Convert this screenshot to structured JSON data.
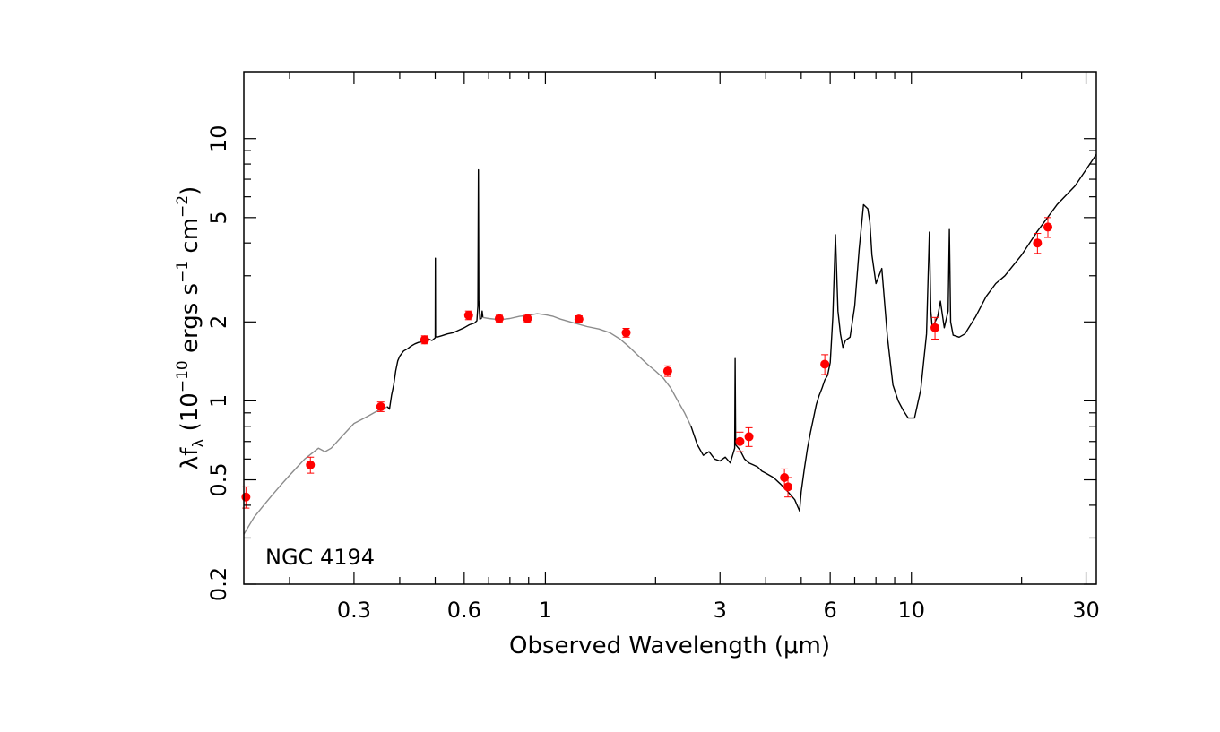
{
  "chart_data": {
    "type": "scatter",
    "title": "",
    "annotation": "NGC 4194",
    "xlabel": "Observed Wavelength (μm)",
    "ylabel": {
      "lead": "λf",
      "sub": "λ",
      "open": " (10",
      "exp1": "−10",
      "mid": " ergs s",
      "exp2": "−1",
      "mid2": " cm",
      "exp3": "−2",
      "close": ")"
    },
    "x_scale": "log",
    "y_scale": "log",
    "xlim": [
      0.15,
      32
    ],
    "ylim": [
      0.2,
      18
    ],
    "x_ticks": [
      {
        "value": 0.3,
        "label": "0.3"
      },
      {
        "value": 0.6,
        "label": "0.6"
      },
      {
        "value": 1,
        "label": "1"
      },
      {
        "value": 3,
        "label": "3"
      },
      {
        "value": 6,
        "label": "6"
      },
      {
        "value": 10,
        "label": "10"
      },
      {
        "value": 30,
        "label": "30"
      }
    ],
    "y_ticks": [
      {
        "value": 0.2,
        "label": "0.2"
      },
      {
        "value": 0.5,
        "label": "0.5"
      },
      {
        "value": 1,
        "label": "1"
      },
      {
        "value": 2,
        "label": "2"
      },
      {
        "value": 5,
        "label": "5"
      },
      {
        "value": 10,
        "label": "10"
      }
    ],
    "series": [
      {
        "kind": "line",
        "color": "#8c8c8c",
        "x": [
          0.15,
          0.16,
          0.17,
          0.18,
          0.19,
          0.2,
          0.21,
          0.22,
          0.23,
          0.24,
          0.25,
          0.26,
          0.27,
          0.28,
          0.29,
          0.3,
          0.31,
          0.32,
          0.33,
          0.34,
          0.35,
          0.36,
          0.37
        ],
        "y": [
          0.31,
          0.36,
          0.4,
          0.44,
          0.48,
          0.52,
          0.56,
          0.6,
          0.63,
          0.66,
          0.64,
          0.66,
          0.7,
          0.74,
          0.78,
          0.82,
          0.84,
          0.86,
          0.88,
          0.9,
          0.92,
          0.93,
          0.95
        ]
      },
      {
        "kind": "line",
        "color": "#000000",
        "x": [
          0.37,
          0.375,
          0.38,
          0.385,
          0.39,
          0.395,
          0.4,
          0.41,
          0.42,
          0.43,
          0.44,
          0.45,
          0.46,
          0.47,
          0.48,
          0.49,
          0.5,
          0.5007,
          0.501,
          0.505,
          0.52,
          0.54,
          0.56,
          0.58,
          0.6,
          0.62,
          0.64,
          0.65,
          0.654,
          0.656,
          0.658,
          0.662,
          0.668,
          0.672,
          0.675
        ],
        "y": [
          0.95,
          0.93,
          1.05,
          1.15,
          1.3,
          1.42,
          1.48,
          1.55,
          1.58,
          1.62,
          1.65,
          1.67,
          1.68,
          1.7,
          1.72,
          1.7,
          1.74,
          3.5,
          1.76,
          1.75,
          1.77,
          1.8,
          1.82,
          1.86,
          1.9,
          1.95,
          1.98,
          2.02,
          2.3,
          7.6,
          2.4,
          2.05,
          2.06,
          2.2,
          2.08
        ]
      },
      {
        "kind": "line",
        "color": "#8c8c8c",
        "x": [
          0.675,
          0.7,
          0.75,
          0.8,
          0.85,
          0.9,
          0.95,
          1.0,
          1.05,
          1.1,
          1.2,
          1.3,
          1.4,
          1.5,
          1.6,
          1.7,
          1.8,
          1.9,
          2.0,
          2.1,
          2.2,
          2.3,
          2.4,
          2.5
        ],
        "y": [
          2.08,
          2.06,
          2.04,
          2.06,
          2.1,
          2.12,
          2.15,
          2.13,
          2.1,
          2.05,
          1.98,
          1.92,
          1.88,
          1.82,
          1.72,
          1.6,
          1.48,
          1.38,
          1.3,
          1.22,
          1.12,
          1.0,
          0.9,
          0.8
        ]
      },
      {
        "kind": "line",
        "color": "#000000",
        "x": [
          2.5,
          2.6,
          2.7,
          2.8,
          2.9,
          3.0,
          3.1,
          3.2,
          3.29,
          3.3,
          3.31,
          3.4,
          3.5,
          3.6,
          3.7,
          3.8,
          3.9,
          4.0,
          4.2,
          4.4,
          4.6,
          4.8,
          4.95,
          5.0,
          5.1,
          5.2,
          5.3,
          5.4,
          5.5,
          5.6,
          5.7,
          5.8,
          5.9,
          6.0,
          6.1,
          6.2,
          6.3,
          6.4,
          6.5,
          6.6,
          6.8,
          7.0,
          7.2,
          7.4,
          7.6,
          7.7,
          7.8,
          8.0,
          8.3,
          8.6,
          8.9,
          9.2,
          9.5,
          9.8,
          10.2,
          10.6,
          11.0,
          11.2,
          11.3,
          11.4,
          11.6,
          11.8,
          12.0,
          12.3,
          12.6,
          12.7,
          12.8,
          13.0,
          13.5,
          14.0,
          15.0,
          16.0,
          17.0,
          18.0,
          20.0,
          22.0,
          25.0,
          28.0,
          32.0
        ],
        "y": [
          0.8,
          0.68,
          0.62,
          0.64,
          0.6,
          0.59,
          0.61,
          0.58,
          0.66,
          1.45,
          0.68,
          0.65,
          0.6,
          0.58,
          0.57,
          0.56,
          0.54,
          0.53,
          0.51,
          0.48,
          0.45,
          0.42,
          0.38,
          0.45,
          0.55,
          0.66,
          0.76,
          0.86,
          0.97,
          1.05,
          1.12,
          1.2,
          1.25,
          1.4,
          2.1,
          4.3,
          2.2,
          1.8,
          1.6,
          1.7,
          1.75,
          2.3,
          3.8,
          5.6,
          5.4,
          4.8,
          3.6,
          2.8,
          3.2,
          1.75,
          1.15,
          1.0,
          0.92,
          0.86,
          0.86,
          1.1,
          1.8,
          4.4,
          2.2,
          1.9,
          2.0,
          2.1,
          2.4,
          1.9,
          2.2,
          4.5,
          2.0,
          1.78,
          1.75,
          1.8,
          2.1,
          2.5,
          2.8,
          3.0,
          3.6,
          4.4,
          5.6,
          6.6,
          8.7
        ]
      },
      {
        "kind": "points",
        "color": "#ff0000",
        "x": [
          0.152,
          0.228,
          0.355,
          0.468,
          0.617,
          0.748,
          0.893,
          1.235,
          1.662,
          2.159,
          3.4,
          3.6,
          4.5,
          4.6,
          5.8,
          11.6,
          22.1,
          23.6
        ],
        "y": [
          0.43,
          0.57,
          0.95,
          1.71,
          2.12,
          2.06,
          2.06,
          2.05,
          1.82,
          1.3,
          0.7,
          0.73,
          0.51,
          0.47,
          1.38,
          1.9,
          4.0,
          4.6
        ],
        "yerr": [
          0.04,
          0.04,
          0.04,
          0.06,
          0.08,
          0.06,
          0.06,
          0.06,
          0.07,
          0.06,
          0.06,
          0.06,
          0.04,
          0.04,
          0.12,
          0.18,
          0.35,
          0.4
        ]
      }
    ]
  }
}
